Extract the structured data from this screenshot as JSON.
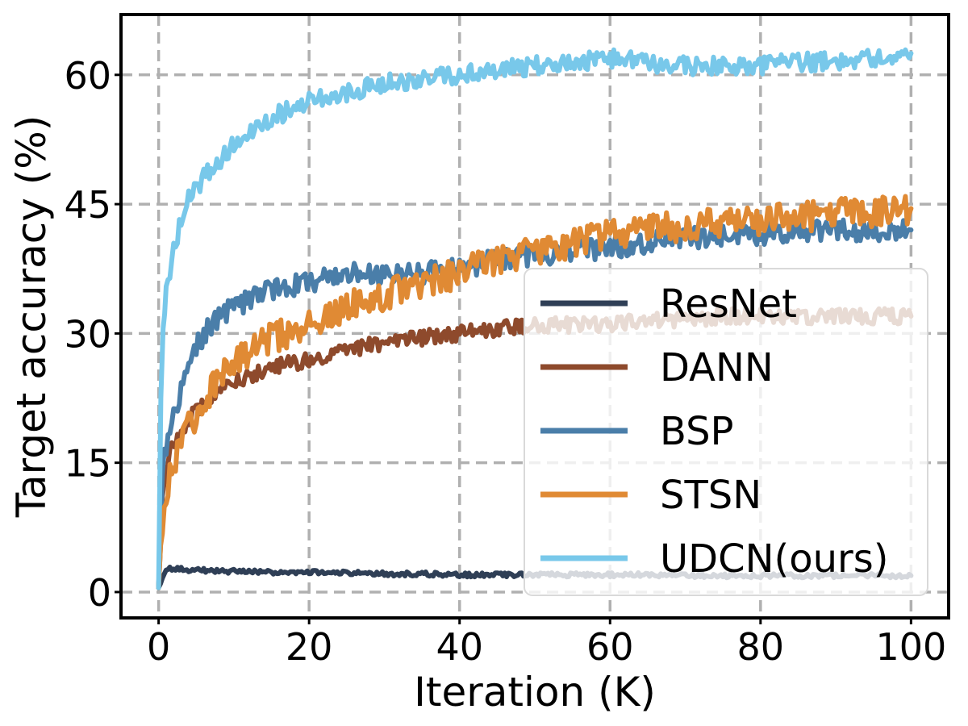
{
  "chart_data": {
    "type": "line",
    "title": "",
    "xlabel": "Iteration (K)",
    "ylabel": "Target accuracy (%)",
    "xlim": [
      -5,
      105
    ],
    "ylim": [
      -3,
      67
    ],
    "xticks": [
      0,
      20,
      40,
      60,
      80,
      100
    ],
    "yticks": [
      0,
      15,
      30,
      45,
      60
    ],
    "xtick_labels": [
      "0",
      "20",
      "40",
      "60",
      "80",
      "100"
    ],
    "ytick_labels": [
      "0",
      "15",
      "30",
      "45",
      "60"
    ],
    "grid": true,
    "legend_position": "center-right",
    "series": [
      {
        "name": "ResNet",
        "color": "#2f3f56",
        "x": [
          0,
          1,
          2,
          4,
          6,
          8,
          10,
          15,
          20,
          25,
          30,
          35,
          40,
          45,
          50,
          55,
          60,
          65,
          70,
          75,
          80,
          85,
          90,
          95,
          100
        ],
        "y": [
          0.5,
          2.8,
          2.7,
          2.6,
          2.5,
          2.4,
          2.4,
          2.3,
          2.3,
          2.2,
          2.1,
          2.1,
          2.0,
          2.0,
          2.0,
          2.0,
          2.0,
          2.0,
          1.9,
          1.9,
          1.9,
          1.9,
          1.9,
          1.9,
          1.9
        ]
      },
      {
        "name": "DANN",
        "color": "#8e4a2c",
        "x": [
          0,
          0.5,
          1,
          2,
          3,
          4,
          6,
          8,
          10,
          15,
          20,
          25,
          30,
          35,
          40,
          45,
          50,
          55,
          60,
          65,
          70,
          75,
          80,
          85,
          90,
          95,
          100
        ],
        "y": [
          0.5,
          12,
          15,
          17,
          18.5,
          20,
          22,
          23.5,
          24.5,
          26,
          27,
          28,
          29,
          29.5,
          30,
          30.5,
          31,
          31,
          31,
          31.5,
          31.5,
          32,
          32,
          32,
          32,
          32,
          32
        ]
      },
      {
        "name": "BSP",
        "color": "#4a7ea9",
        "x": [
          0,
          0.5,
          1,
          2,
          3,
          4,
          6,
          8,
          10,
          15,
          20,
          25,
          30,
          35,
          40,
          45,
          50,
          55,
          60,
          65,
          70,
          75,
          80,
          85,
          90,
          95,
          100
        ],
        "y": [
          0.5,
          14,
          17,
          20,
          23,
          27,
          30,
          32,
          33,
          35,
          36,
          37,
          36.5,
          37,
          37.5,
          38.5,
          39,
          39.5,
          40,
          40.5,
          41,
          41.5,
          41.5,
          42,
          42,
          42,
          42
        ]
      },
      {
        "name": "STSN",
        "color": "#e08a34",
        "x": [
          0,
          0.5,
          1,
          2,
          3,
          4,
          6,
          8,
          10,
          15,
          20,
          25,
          30,
          35,
          40,
          45,
          50,
          55,
          60,
          65,
          70,
          75,
          80,
          85,
          90,
          95,
          100
        ],
        "y": [
          0.5,
          7,
          12,
          15,
          17,
          19,
          22,
          25,
          27,
          29.5,
          31,
          33,
          34.5,
          36,
          37,
          38.5,
          39.5,
          40.5,
          41.5,
          42,
          42.5,
          43,
          43,
          43.5,
          44,
          44,
          44.5
        ]
      },
      {
        "name": "UDCN(ours)",
        "color": "#78c8ea",
        "x": [
          0,
          0.3,
          0.6,
          1,
          2,
          3,
          4,
          6,
          8,
          10,
          15,
          20,
          25,
          30,
          35,
          40,
          45,
          50,
          55,
          60,
          65,
          70,
          75,
          80,
          85,
          90,
          95,
          100
        ],
        "y": [
          0.5,
          23,
          30,
          35,
          40,
          43,
          45.5,
          48,
          50,
          52,
          55,
          57,
          58,
          59,
          59.5,
          60,
          60.5,
          61,
          61.5,
          62,
          61.5,
          61,
          61,
          61,
          61.5,
          61.5,
          62,
          62.5
        ]
      }
    ]
  }
}
